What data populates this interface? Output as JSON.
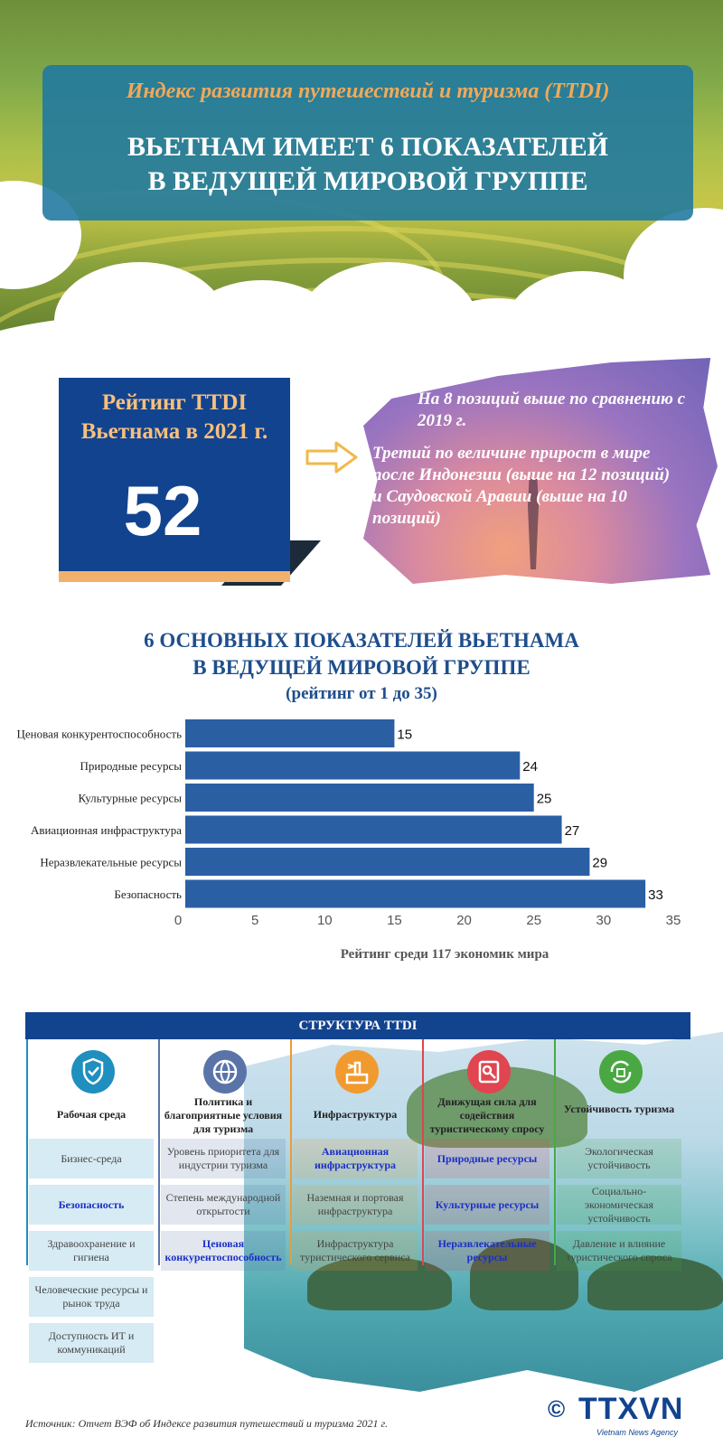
{
  "header": {
    "subtitle": "Индекс развития путешествий и туризма (TTDI)",
    "title_line1": "ВЬЕТНАМ ИМЕЕТ 6 ПОКАЗАТЕЛЕЙ",
    "title_line2": "В ВЕДУЩЕЙ МИРОВОЙ ГРУППЕ"
  },
  "rating": {
    "label_line1": "Рейтинг TTDI",
    "label_line2": "Вьетнама в 2021 г.",
    "value": "52",
    "note1": "На 8 позиций выше по сравнению с 2019 г.",
    "note2": "Третий по величине прирост в мире после Индонезии (выше на 12 позиций) и Саудовской Аравии (выше на 10 позиций)"
  },
  "chart_data": {
    "type": "bar",
    "orientation": "horizontal",
    "title_line1": "6 ОСНОВНЫХ ПОКАЗАТЕЛЕЙ ВЬЕТНАМА",
    "title_line2": "В ВЕДУЩЕЙ МИРОВОЙ ГРУППЕ",
    "subtitle": "(рейтинг от 1 до 35)",
    "categories": [
      "Ценовая конкурентоспособность",
      "Природные ресурсы",
      "Культурные ресурсы",
      "Авиационная инфраструктура",
      "Неразвлекательные ресурсы",
      "Безопасность"
    ],
    "values": [
      15,
      24,
      25,
      27,
      29,
      33
    ],
    "xlabel": "Рейтинг среди 117 экономик мира",
    "xlim": [
      0,
      35
    ],
    "xticks": [
      0,
      5,
      10,
      15,
      20,
      25,
      30,
      35
    ],
    "bar_color": "#2a5fa4",
    "grid": false
  },
  "structure": {
    "header": "СТРУКТУРА TTDI",
    "columns": [
      {
        "title": "Рабочая среда",
        "icon": "shield-check-icon",
        "color": "#1e8fbf",
        "cells": [
          {
            "text": "Бизнес-среда",
            "hl": false
          },
          {
            "text": "Безопасность",
            "hl": true
          },
          {
            "text": "Здравоохранение и гигиена",
            "hl": false
          },
          {
            "text": "Человеческие ресурсы и рынок труда",
            "hl": false
          },
          {
            "text": "Доступность ИТ и коммуникаций",
            "hl": false
          }
        ]
      },
      {
        "title": "Политика и благоприятные условия для туризма",
        "icon": "globe-icon",
        "color": "#5b74a8",
        "cells": [
          {
            "text": "Уровень приоритета для индустрии туризма",
            "hl": false
          },
          {
            "text": "Степень международной открытости",
            "hl": false
          },
          {
            "text": "Ценовая конкурентоспособность",
            "hl": true
          }
        ]
      },
      {
        "title": "Инфраструктура",
        "icon": "airport-icon",
        "color": "#f09a2f",
        "cells": [
          {
            "text": "Авиационная инфраструктура",
            "hl": true
          },
          {
            "text": "Наземная и портовая инфраструктура",
            "hl": false
          },
          {
            "text": "Инфраструктура туристического сервиса",
            "hl": false
          }
        ]
      },
      {
        "title": "Движущая сила для содействия туристическому спросу",
        "icon": "travel-map-icon",
        "color": "#e04550",
        "cells": [
          {
            "text": "Природные ресурсы",
            "hl": true
          },
          {
            "text": "Культурные ресурсы",
            "hl": true
          },
          {
            "text": "Неразвлекательные ресурсы",
            "hl": true
          }
        ]
      },
      {
        "title": "Устойчивость туризма",
        "icon": "recycle-house-icon",
        "color": "#4aa843",
        "cells": [
          {
            "text": "Экологическая устойчивость",
            "hl": false
          },
          {
            "text": "Социально-экономическая устойчивость",
            "hl": false
          },
          {
            "text": "Давление и влияние туристического спроса",
            "hl": false
          }
        ]
      }
    ]
  },
  "footer": {
    "source": "Источник: Отчет ВЭФ об Индексе развития путешествий и туризма 2021 г.",
    "copyright": "©",
    "logo": "TTXVN",
    "logo_sub": "Vietnam News Agency"
  }
}
